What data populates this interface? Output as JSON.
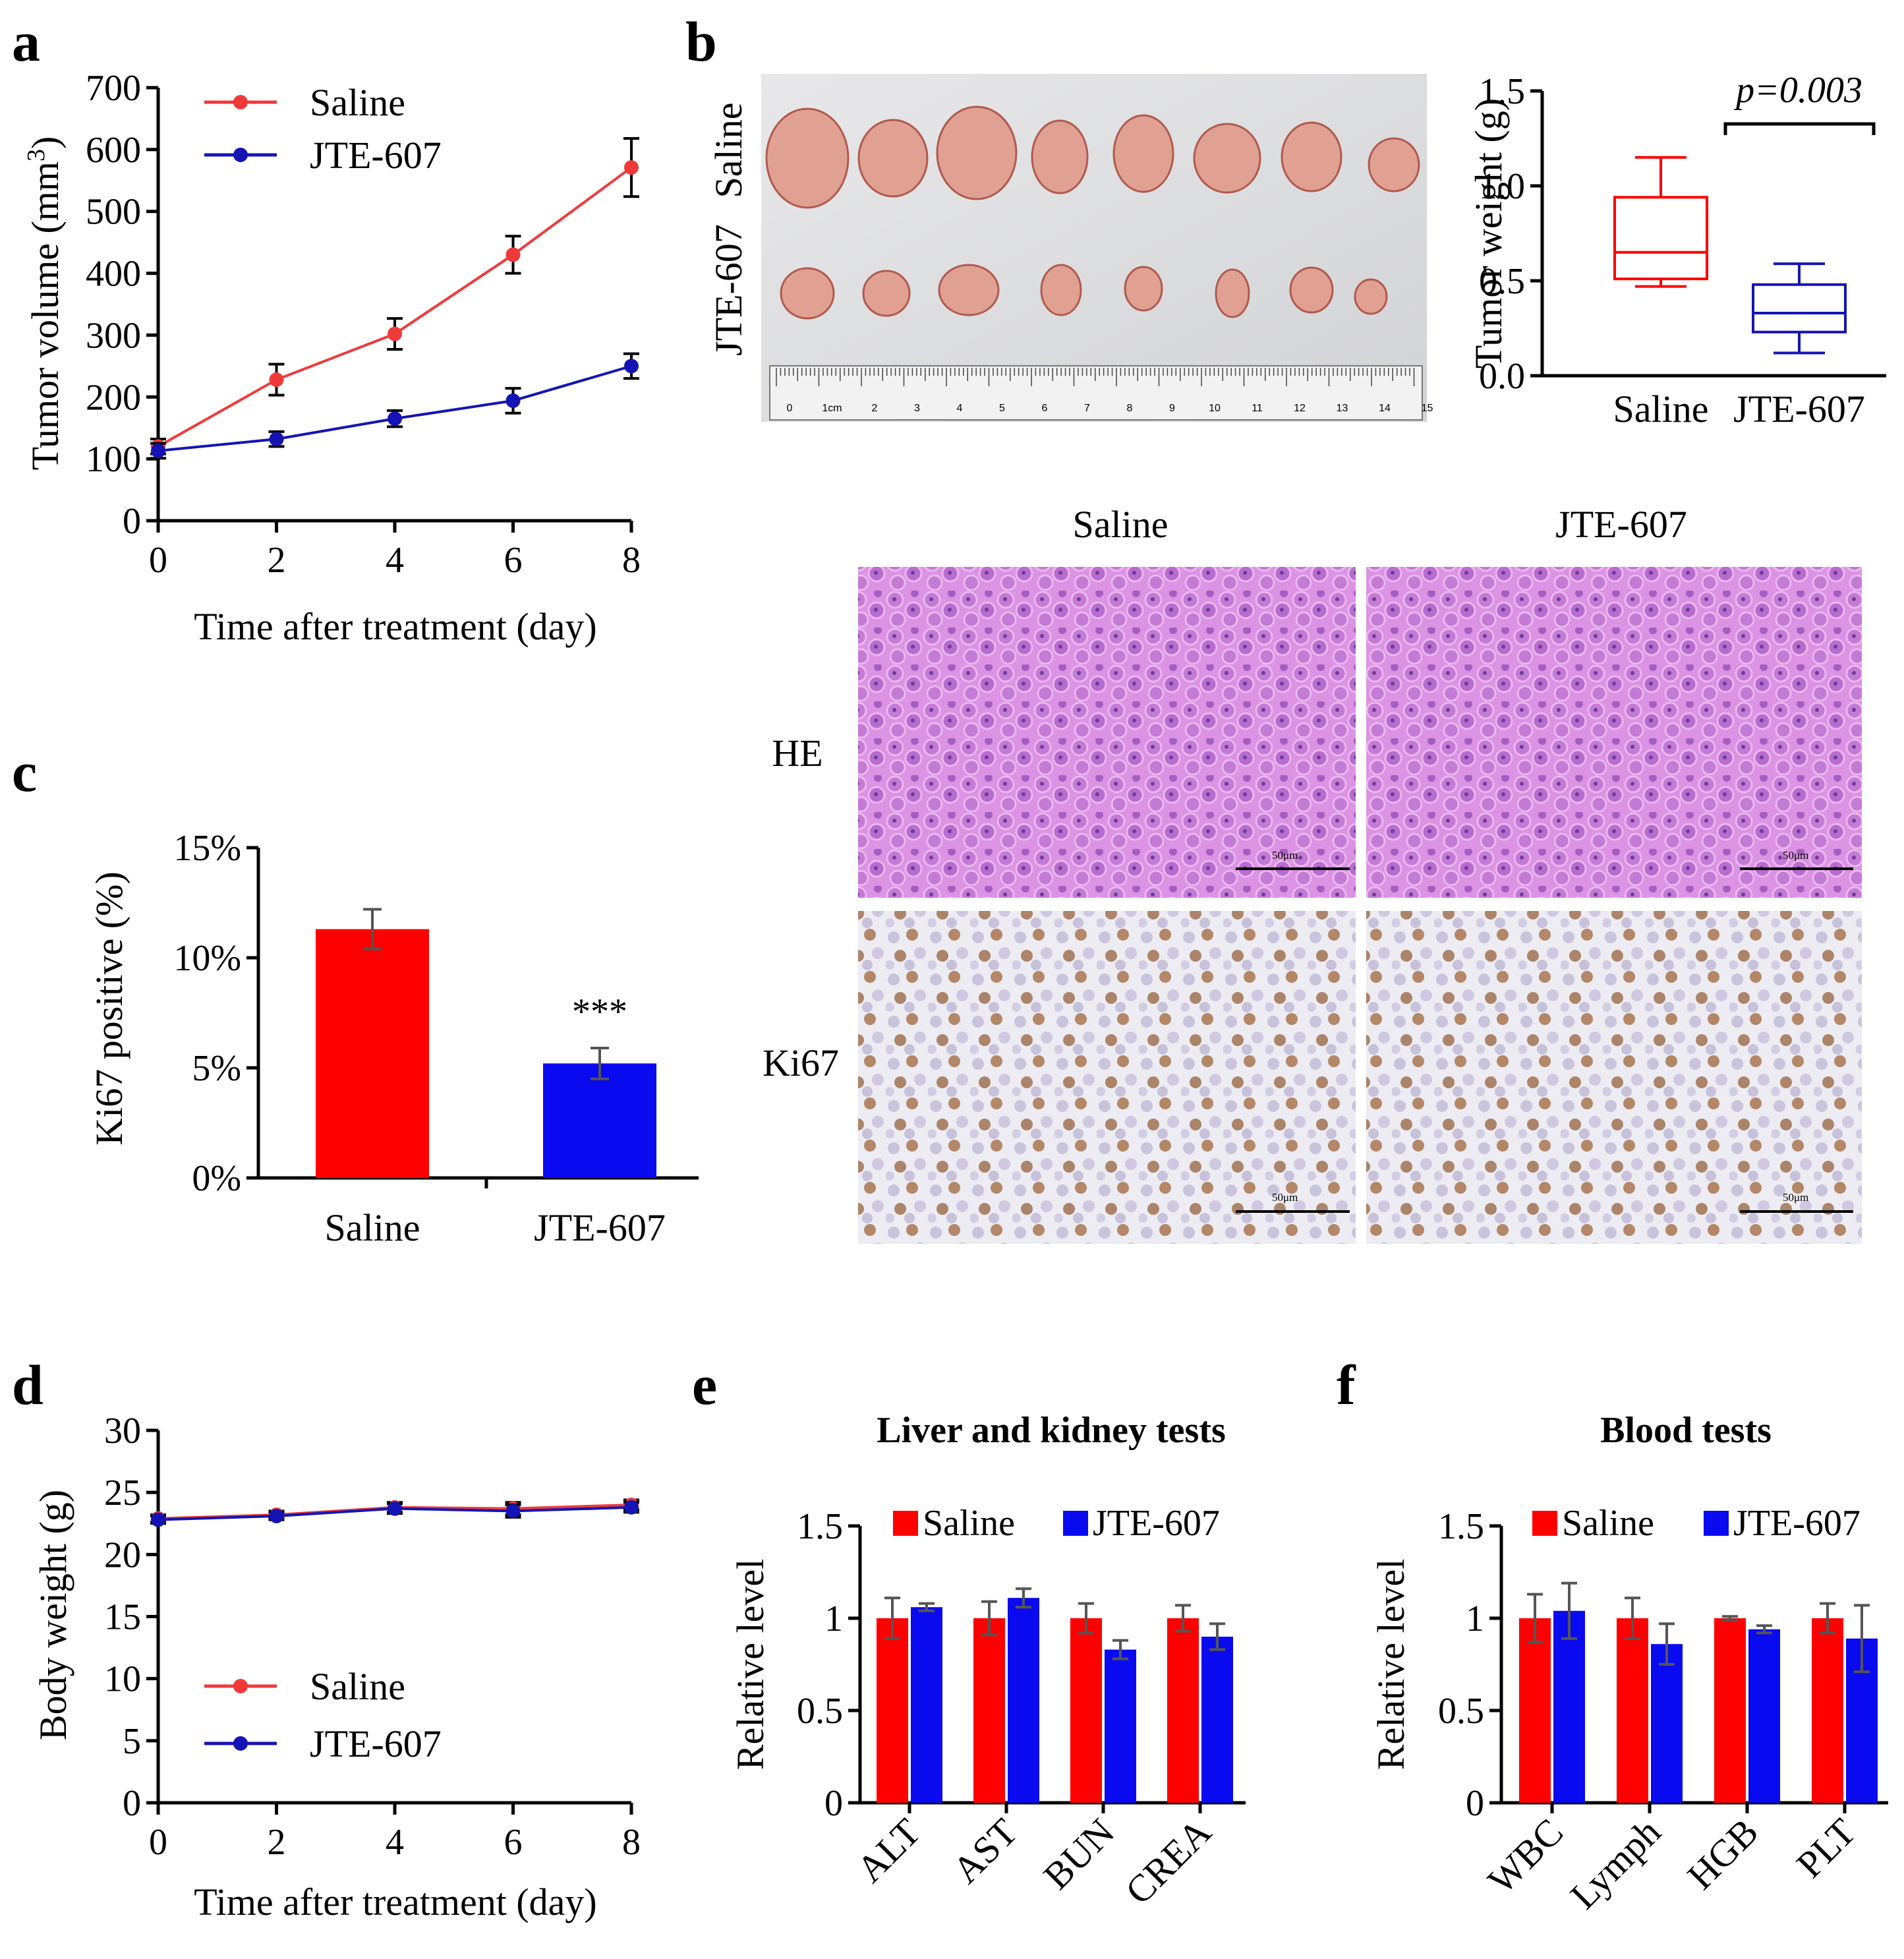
{
  "figure": {
    "panel_labels": {
      "a": "a",
      "b": "b",
      "c": "c",
      "d": "d",
      "e": "e",
      "f": "f"
    },
    "b_photo": {
      "row_labels": [
        "Saline",
        "JTE-607"
      ],
      "ruler_labels": [
        "0",
        "1cm",
        "2",
        "3",
        "4",
        "5",
        "6",
        "7",
        "8",
        "9",
        "10",
        "11",
        "12",
        "13",
        "14",
        "15"
      ]
    },
    "histology": {
      "column_labels": [
        "Saline",
        "JTE-607"
      ],
      "row_labels": [
        "HE",
        "Ki67"
      ],
      "scale_bar": "50μm"
    },
    "colors": {
      "saline_line": "#f03a3a",
      "jte_line": "#1414b4",
      "saline_bar": "#ff0000",
      "jte_bar": "#0a0af0",
      "he_stain": "#d78ce1",
      "ki67_bg": "#e9e8f0"
    }
  },
  "chart_data": [
    {
      "id": "a",
      "type": "line",
      "title": "",
      "xlabel": "Time after treatment (day)",
      "ylabel": "Tumor volume (mm",
      "ylabel_sup": "3",
      "ylabel_end": ")",
      "x": [
        0,
        2,
        4,
        6,
        8
      ],
      "xticks": [
        "0",
        "2",
        "4",
        "6",
        "8"
      ],
      "yticks": [
        "0",
        "100",
        "200",
        "300",
        "400",
        "500",
        "600",
        "700"
      ],
      "ylim": [
        0,
        700
      ],
      "xlim": [
        0,
        8
      ],
      "legend_position": "top-left",
      "series": [
        {
          "name": "Saline",
          "values": [
            120,
            228,
            302,
            430,
            571
          ],
          "err": [
            12,
            25,
            25,
            30,
            47
          ]
        },
        {
          "name": "JTE-607",
          "values": [
            113,
            132,
            165,
            194,
            250
          ],
          "err": [
            12,
            12,
            13,
            20,
            20
          ]
        }
      ]
    },
    {
      "id": "b",
      "type": "box",
      "ylabel": "Tumor weight (g)",
      "categories": [
        "Saline",
        "JTE-607"
      ],
      "yticks": [
        "0.0",
        "0.5",
        "1.0",
        "1.5"
      ],
      "ylim": [
        0,
        1.5
      ],
      "boxes": [
        {
          "min": 0.47,
          "q1": 0.51,
          "median": 0.65,
          "q3": 0.94,
          "max": 1.15
        },
        {
          "min": 0.12,
          "q1": 0.23,
          "median": 0.33,
          "q3": 0.48,
          "max": 0.59
        }
      ],
      "annotation": "p=0.003"
    },
    {
      "id": "c",
      "type": "bar",
      "ylabel": "Ki67 positive (%)",
      "categories": [
        "Saline",
        "JTE-607"
      ],
      "values": [
        11.3,
        5.2
      ],
      "err": [
        0.9,
        0.7
      ],
      "yticks": [
        "0%",
        "5%",
        "10%",
        "15%"
      ],
      "ylim": [
        0,
        15
      ],
      "annotation": "***"
    },
    {
      "id": "d",
      "type": "line",
      "xlabel": "Time after treatment (day)",
      "ylabel": "Body weight (g)",
      "x": [
        0,
        2,
        4,
        6,
        8
      ],
      "xticks": [
        "0",
        "2",
        "4",
        "6",
        "8"
      ],
      "yticks": [
        "0",
        "5",
        "10",
        "15",
        "20",
        "25",
        "30"
      ],
      "ylim": [
        0,
        30
      ],
      "xlim": [
        0,
        8
      ],
      "legend_position": "bottom-left",
      "series": [
        {
          "name": "Saline",
          "values": [
            22.9,
            23.2,
            23.8,
            23.7,
            24.0
          ],
          "err": [
            0.3,
            0.3,
            0.4,
            0.5,
            0.4
          ]
        },
        {
          "name": "JTE-607",
          "values": [
            22.8,
            23.1,
            23.7,
            23.5,
            23.8
          ],
          "err": [
            0.3,
            0.3,
            0.4,
            0.5,
            0.4
          ]
        }
      ]
    },
    {
      "id": "e",
      "type": "bar",
      "title": "Liver and kidney tests",
      "ylabel": "Relative level",
      "categories": [
        "ALT",
        "AST",
        "BUN",
        "CREA"
      ],
      "yticks": [
        "0",
        "0.5",
        "1",
        "1.5"
      ],
      "ylim": [
        0,
        1.5
      ],
      "legend_position": "top",
      "series": [
        {
          "name": "Saline",
          "values": [
            1.0,
            1.0,
            1.0,
            1.0
          ],
          "err": [
            0.11,
            0.09,
            0.08,
            0.07
          ]
        },
        {
          "name": "JTE-607",
          "values": [
            1.06,
            1.11,
            0.83,
            0.9
          ],
          "err": [
            0.02,
            0.05,
            0.05,
            0.07
          ]
        }
      ]
    },
    {
      "id": "f",
      "type": "bar",
      "title": "Blood tests",
      "ylabel": "Relative level",
      "categories": [
        "WBC",
        "Lymph",
        "HGB",
        "PLT"
      ],
      "yticks": [
        "0",
        "0.5",
        "1",
        "1.5"
      ],
      "ylim": [
        0,
        1.5
      ],
      "legend_position": "top",
      "series": [
        {
          "name": "Saline",
          "values": [
            1.0,
            1.0,
            1.0,
            1.0
          ],
          "err": [
            0.13,
            0.11,
            0.01,
            0.08
          ]
        },
        {
          "name": "JTE-607",
          "values": [
            1.04,
            0.86,
            0.94,
            0.89
          ],
          "err": [
            0.15,
            0.11,
            0.02,
            0.18
          ]
        }
      ]
    }
  ]
}
